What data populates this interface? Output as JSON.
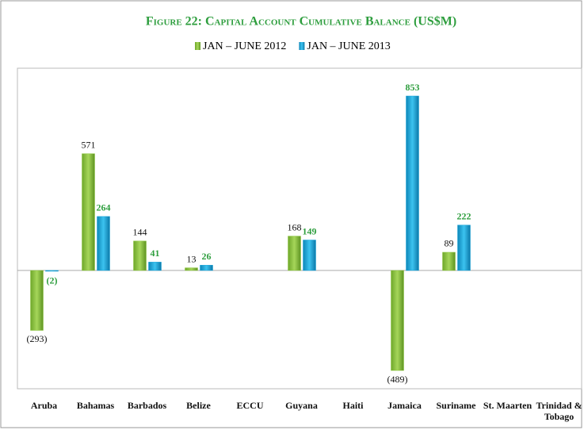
{
  "chart_data": {
    "type": "bar",
    "title": "Figure 22: Capital Account Cumulative Balance (US$M)",
    "categories": [
      "Aruba",
      "Bahamas",
      "Barbados",
      "Belize",
      "ECCU",
      "Guyana",
      "Haiti",
      "Jamaica",
      "Suriname",
      "St. Maarten",
      "Trinidad & Tobago"
    ],
    "series": [
      {
        "name": "JAN – JUNE 2012",
        "color": "#8cc63e",
        "values": [
          -293,
          571,
          144,
          13,
          null,
          168,
          null,
          -489,
          89,
          null,
          null
        ],
        "value_labels": [
          "(293)",
          "571",
          "144",
          "13",
          null,
          "168",
          null,
          "(489)",
          "89",
          null,
          null
        ]
      },
      {
        "name": "JAN – JUNE 2013",
        "color": "#17a4d9",
        "values": [
          -2,
          264,
          41,
          26,
          null,
          149,
          null,
          853,
          222,
          null,
          null
        ],
        "value_labels": [
          "(2)",
          "264",
          "41",
          "26",
          null,
          "149",
          null,
          "853",
          "222",
          null,
          null
        ]
      }
    ],
    "legend": "top"
  }
}
